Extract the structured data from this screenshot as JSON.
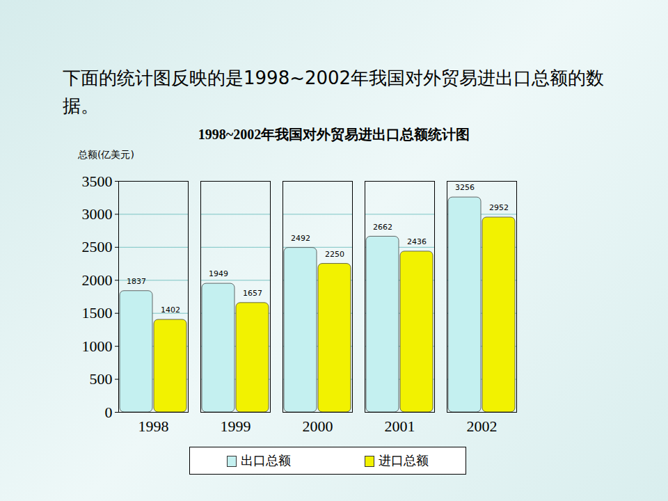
{
  "chart_data": {
    "type": "bar",
    "subtitle": "下面的统计图反映的是1998~2002年我国对外贸易进出口总额的数据。",
    "title": "1998~2002年我国对外贸易进出口总额统计图",
    "y_label": "总额(亿美元)",
    "categories": [
      "1998",
      "1999",
      "2000",
      "2001",
      "2002"
    ],
    "series": [
      {
        "name": "出口总额",
        "color": "#c4f0f0",
        "values": [
          1837,
          1949,
          2492,
          2662,
          3256
        ]
      },
      {
        "name": "进口总额",
        "color": "#f2f200",
        "values": [
          1402,
          1657,
          2250,
          2436,
          2952
        ]
      }
    ],
    "ylim": [
      0,
      3500
    ],
    "yticks": [
      0,
      500,
      1000,
      1500,
      2000,
      2500,
      3000,
      3500
    ],
    "grid": true,
    "data_labels": true,
    "legend": "bottom"
  }
}
